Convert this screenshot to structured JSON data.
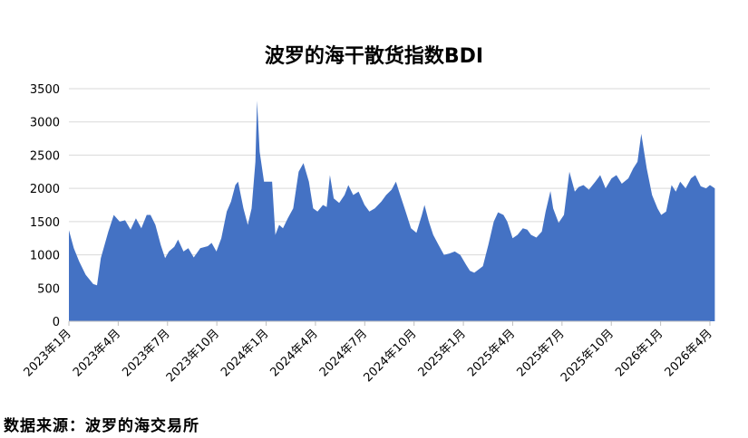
{
  "title": "波罗的海干散货指数BDI",
  "source": "数据来源：波罗的海交易所",
  "colors": {
    "fill": "#4472C4",
    "grid": "#d9d9d9",
    "axis": "#000000"
  },
  "chart_data": {
    "type": "area",
    "title": "波罗的海干散货指数BDI",
    "xlabel": "",
    "ylabel": "",
    "ylim": [
      0,
      3500
    ],
    "yticks": [
      0,
      500,
      1000,
      1500,
      2000,
      2500,
      3000,
      3500
    ],
    "grid": true,
    "legend": "none",
    "x_tick_labels": [
      "2023年1月",
      "2023年4月",
      "2023年7月",
      "2023年10月",
      "2024年1月",
      "2024年4月",
      "2024年7月",
      "2024年10月",
      "2025年1月",
      "2025年4月",
      "2025年7月",
      "2025年10月",
      "2026年1月",
      "2026年4月"
    ],
    "x_start": "2023-01",
    "x_end": "2026-04",
    "series": [
      {
        "name": "",
        "points": [
          [
            "2023-01-01",
            1370
          ],
          [
            "2023-01-10",
            1100
          ],
          [
            "2023-01-20",
            900
          ],
          [
            "2023-02-01",
            700
          ],
          [
            "2023-02-15",
            560
          ],
          [
            "2023-02-22",
            540
          ],
          [
            "2023-03-01",
            950
          ],
          [
            "2023-03-15",
            1350
          ],
          [
            "2023-03-25",
            1600
          ],
          [
            "2023-04-05",
            1500
          ],
          [
            "2023-04-15",
            1520
          ],
          [
            "2023-04-25",
            1380
          ],
          [
            "2023-05-05",
            1550
          ],
          [
            "2023-05-15",
            1400
          ],
          [
            "2023-05-25",
            1600
          ],
          [
            "2023-06-01",
            1600
          ],
          [
            "2023-06-10",
            1450
          ],
          [
            "2023-06-20",
            1150
          ],
          [
            "2023-06-28",
            950
          ],
          [
            "2023-07-05",
            1050
          ],
          [
            "2023-07-15",
            1120
          ],
          [
            "2023-07-22",
            1230
          ],
          [
            "2023-08-01",
            1050
          ],
          [
            "2023-08-10",
            1100
          ],
          [
            "2023-08-20",
            960
          ],
          [
            "2023-09-01",
            1100
          ],
          [
            "2023-09-15",
            1130
          ],
          [
            "2023-09-22",
            1180
          ],
          [
            "2023-10-01",
            1050
          ],
          [
            "2023-10-10",
            1250
          ],
          [
            "2023-10-20",
            1650
          ],
          [
            "2023-10-28",
            1800
          ],
          [
            "2023-11-05",
            2050
          ],
          [
            "2023-11-10",
            2100
          ],
          [
            "2023-11-20",
            1700
          ],
          [
            "2023-11-28",
            1450
          ],
          [
            "2023-12-05",
            1700
          ],
          [
            "2023-12-12",
            2400
          ],
          [
            "2023-12-15",
            3320
          ],
          [
            "2023-12-20",
            2550
          ],
          [
            "2023-12-28",
            2100
          ],
          [
            "2024-01-05",
            2100
          ],
          [
            "2024-01-12",
            2100
          ],
          [
            "2024-01-18",
            1300
          ],
          [
            "2024-01-25",
            1450
          ],
          [
            "2024-02-01",
            1400
          ],
          [
            "2024-02-10",
            1550
          ],
          [
            "2024-02-20",
            1700
          ],
          [
            "2024-03-01",
            2250
          ],
          [
            "2024-03-10",
            2380
          ],
          [
            "2024-03-20",
            2100
          ],
          [
            "2024-03-28",
            1700
          ],
          [
            "2024-04-05",
            1650
          ],
          [
            "2024-04-15",
            1750
          ],
          [
            "2024-04-22",
            1720
          ],
          [
            "2024-04-28",
            2200
          ],
          [
            "2024-05-05",
            1850
          ],
          [
            "2024-05-15",
            1780
          ],
          [
            "2024-05-25",
            1900
          ],
          [
            "2024-06-01",
            2050
          ],
          [
            "2024-06-10",
            1900
          ],
          [
            "2024-06-20",
            1950
          ],
          [
            "2024-07-01",
            1750
          ],
          [
            "2024-07-10",
            1650
          ],
          [
            "2024-07-20",
            1700
          ],
          [
            "2024-08-01",
            1800
          ],
          [
            "2024-08-10",
            1900
          ],
          [
            "2024-08-20",
            1980
          ],
          [
            "2024-08-28",
            2100
          ],
          [
            "2024-09-05",
            1900
          ],
          [
            "2024-09-15",
            1650
          ],
          [
            "2024-09-25",
            1400
          ],
          [
            "2024-10-05",
            1330
          ],
          [
            "2024-10-15",
            1600
          ],
          [
            "2024-10-20",
            1750
          ],
          [
            "2024-10-28",
            1500
          ],
          [
            "2024-11-05",
            1300
          ],
          [
            "2024-11-15",
            1150
          ],
          [
            "2024-11-25",
            1000
          ],
          [
            "2024-12-05",
            1020
          ],
          [
            "2024-12-15",
            1050
          ],
          [
            "2024-12-25",
            1000
          ],
          [
            "2025-01-05",
            850
          ],
          [
            "2025-01-12",
            760
          ],
          [
            "2025-01-20",
            730
          ],
          [
            "2025-01-28",
            780
          ],
          [
            "2025-02-05",
            830
          ],
          [
            "2025-02-15",
            1150
          ],
          [
            "2025-02-25",
            1500
          ],
          [
            "2025-03-05",
            1640
          ],
          [
            "2025-03-15",
            1600
          ],
          [
            "2025-03-22",
            1500
          ],
          [
            "2025-04-01",
            1250
          ],
          [
            "2025-04-10",
            1300
          ],
          [
            "2025-04-20",
            1400
          ],
          [
            "2025-04-28",
            1380
          ],
          [
            "2025-05-05",
            1300
          ],
          [
            "2025-05-15",
            1260
          ],
          [
            "2025-05-25",
            1350
          ],
          [
            "2025-06-01",
            1650
          ],
          [
            "2025-06-10",
            1960
          ],
          [
            "2025-06-15",
            1700
          ],
          [
            "2025-06-25",
            1480
          ],
          [
            "2025-07-05",
            1600
          ],
          [
            "2025-07-15",
            2250
          ],
          [
            "2025-07-25",
            1950
          ],
          [
            "2025-08-01",
            2020
          ],
          [
            "2025-08-10",
            2050
          ],
          [
            "2025-08-20",
            1980
          ],
          [
            "2025-09-01",
            2100
          ],
          [
            "2025-09-10",
            2200
          ],
          [
            "2025-09-20",
            2000
          ],
          [
            "2025-10-01",
            2150
          ],
          [
            "2025-10-10",
            2200
          ],
          [
            "2025-10-20",
            2070
          ],
          [
            "2025-11-01",
            2150
          ],
          [
            "2025-11-10",
            2300
          ],
          [
            "2025-11-18",
            2400
          ],
          [
            "2025-11-25",
            2820
          ],
          [
            "2025-12-05",
            2300
          ],
          [
            "2025-12-15",
            1900
          ],
          [
            "2025-12-25",
            1700
          ],
          [
            "2026-01-01",
            1600
          ],
          [
            "2026-01-10",
            1650
          ],
          [
            "2026-01-20",
            2050
          ],
          [
            "2026-01-28",
            1950
          ],
          [
            "2026-02-05",
            2100
          ],
          [
            "2026-02-15",
            2000
          ],
          [
            "2026-02-25",
            2150
          ],
          [
            "2026-03-05",
            2200
          ],
          [
            "2026-03-15",
            2030
          ],
          [
            "2026-03-25",
            2000
          ],
          [
            "2026-04-01",
            2050
          ],
          [
            "2026-04-10",
            2000
          ]
        ]
      }
    ]
  }
}
